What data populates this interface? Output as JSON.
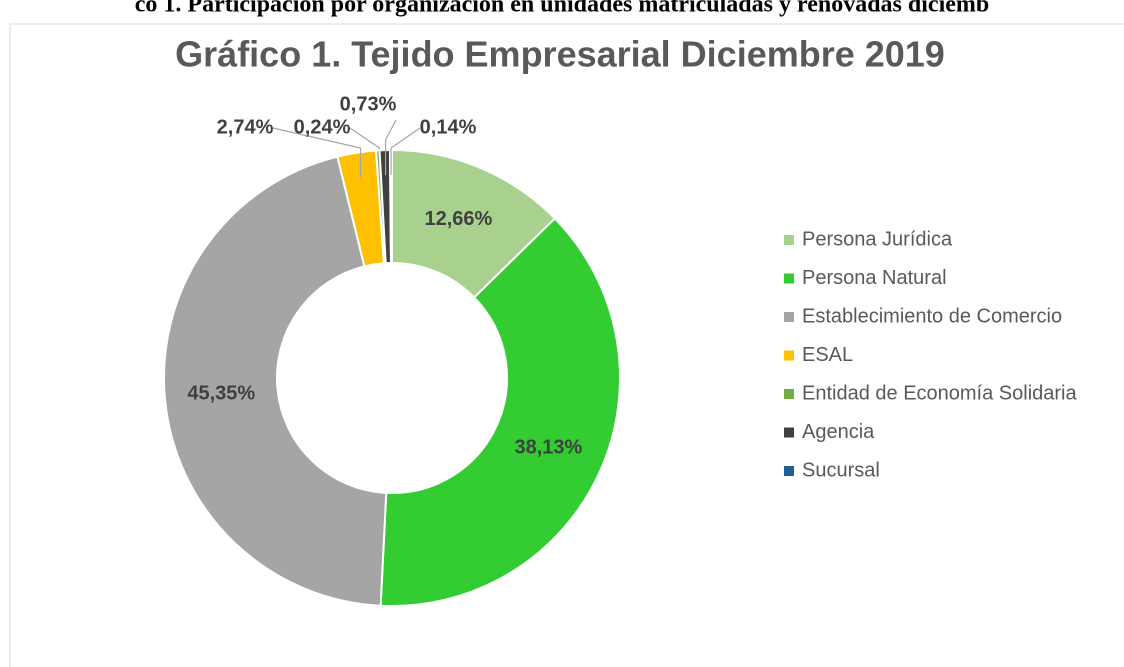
{
  "caption": "co 1. Participación por organización en unidades matriculadas y renovadas diciemb",
  "chart_data": {
    "type": "donut",
    "title": "Gráfico 1. Tejido Empresarial Diciembre 2019",
    "categories": [
      "Persona Jurídica",
      "Persona Natural",
      "Establecimiento de Comercio",
      "ESAL",
      "Entidad de Economía Solidaria",
      "Agencia",
      "Sucursal"
    ],
    "values": [
      12.66,
      38.13,
      45.35,
      2.74,
      0.24,
      0.73,
      0.14
    ],
    "value_labels": [
      "12,66%",
      "38,13%",
      "45,35%",
      "2,74%",
      "0,24%",
      "0,73%",
      "0,14%"
    ],
    "colors": [
      "#a9d18e",
      "#33cc33",
      "#a5a5a5",
      "#ffc000",
      "#70ad47",
      "#404040",
      "#255e91"
    ],
    "legend": "right"
  }
}
